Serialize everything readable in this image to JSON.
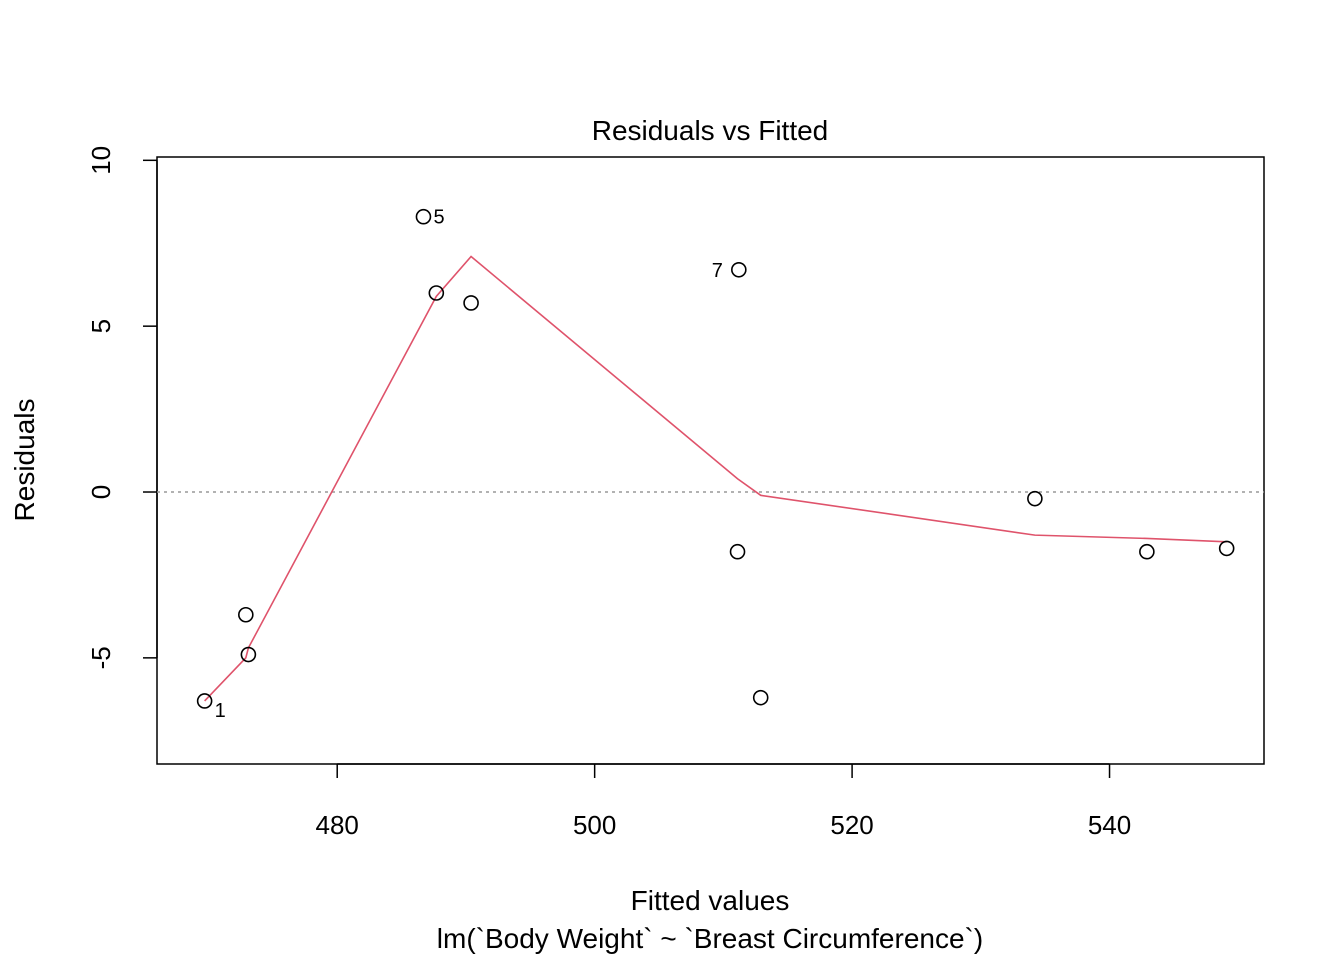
{
  "chart_data": {
    "type": "scatter",
    "title": "Residuals vs Fitted",
    "xlabel": "Fitted values",
    "subtitle": "lm(`Body Weight` ~ `Breast Circumference`)",
    "ylabel": "Residuals",
    "xlim": [
      466,
      552
    ],
    "ylim": [
      -8.2,
      10.1
    ],
    "x_ticks": [
      480,
      500,
      520,
      540
    ],
    "x_tick_labels": [
      "480",
      "500",
      "520",
      "540"
    ],
    "y_ticks": [
      -5,
      0,
      5,
      10
    ],
    "y_tick_labels": [
      "-5",
      "0",
      "5",
      "10"
    ],
    "reference_line": {
      "y": 0,
      "style": "dotted",
      "color": "#999999"
    },
    "points": [
      {
        "x": 469.7,
        "y": -6.3,
        "label": "1"
      },
      {
        "x": 472.9,
        "y": -3.7,
        "label": ""
      },
      {
        "x": 473.1,
        "y": -4.9,
        "label": ""
      },
      {
        "x": 486.7,
        "y": 8.3,
        "label": "5"
      },
      {
        "x": 487.7,
        "y": 6.0,
        "label": ""
      },
      {
        "x": 490.4,
        "y": 5.7,
        "label": ""
      },
      {
        "x": 511.2,
        "y": 6.7,
        "label": "7"
      },
      {
        "x": 511.1,
        "y": -1.8,
        "label": ""
      },
      {
        "x": 512.9,
        "y": -6.2,
        "label": ""
      },
      {
        "x": 534.2,
        "y": -0.2,
        "label": ""
      },
      {
        "x": 542.9,
        "y": -1.8,
        "label": ""
      },
      {
        "x": 549.1,
        "y": -1.7,
        "label": ""
      }
    ],
    "smoother": {
      "color": "#DF536B",
      "x": [
        469.7,
        472.9,
        473.1,
        487.7,
        490.4,
        511.1,
        512.9,
        534.2,
        542.9,
        549.1
      ],
      "y": [
        -6.3,
        -5.0,
        -4.7,
        5.9,
        7.1,
        0.4,
        -0.1,
        -1.3,
        -1.4,
        -1.5
      ]
    }
  }
}
